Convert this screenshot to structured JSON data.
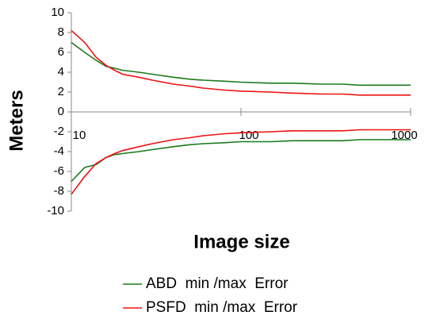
{
  "chart_data": {
    "type": "line",
    "x_label": "Image size",
    "y_label": "Meters",
    "x": [
      10,
      12,
      14,
      16,
      18,
      20,
      25,
      30,
      40,
      50,
      60,
      80,
      100,
      150,
      200,
      300,
      400,
      500,
      700,
      1000
    ],
    "xlog": true,
    "xlim": [
      10,
      1000
    ],
    "xticks": [
      10,
      100,
      1000
    ],
    "ylim": [
      -10,
      10
    ],
    "yticks": [
      -10,
      -8,
      -6,
      -4,
      -2,
      0,
      2,
      4,
      6,
      8,
      10
    ],
    "legend": "bottom",
    "series": [
      {
        "name": "ABD  min /max  Error",
        "color": "#1a7a1a",
        "upper": [
          7.0,
          6.0,
          5.2,
          4.6,
          4.4,
          4.2,
          4.0,
          3.8,
          3.5,
          3.3,
          3.2,
          3.1,
          3.0,
          2.9,
          2.9,
          2.8,
          2.8,
          2.7,
          2.7,
          2.7
        ],
        "lower": [
          -7.0,
          -5.6,
          -5.3,
          -4.6,
          -4.3,
          -4.2,
          -4.0,
          -3.8,
          -3.5,
          -3.3,
          -3.2,
          -3.1,
          -3.0,
          -3.0,
          -2.9,
          -2.9,
          -2.9,
          -2.8,
          -2.8,
          -2.8
        ]
      },
      {
        "name": "PSFD  min /max  Error",
        "color": "#ee1111",
        "upper": [
          8.2,
          7.0,
          5.5,
          4.7,
          4.2,
          3.8,
          3.5,
          3.2,
          2.8,
          2.6,
          2.4,
          2.2,
          2.1,
          2.0,
          1.9,
          1.8,
          1.8,
          1.7,
          1.7,
          1.7
        ],
        "lower": [
          -8.3,
          -6.5,
          -5.2,
          -4.6,
          -4.2,
          -3.9,
          -3.5,
          -3.2,
          -2.8,
          -2.6,
          -2.4,
          -2.2,
          -2.1,
          -2.0,
          -1.9,
          -1.9,
          -1.9,
          -1.8,
          -1.8,
          -1.8
        ]
      }
    ]
  }
}
